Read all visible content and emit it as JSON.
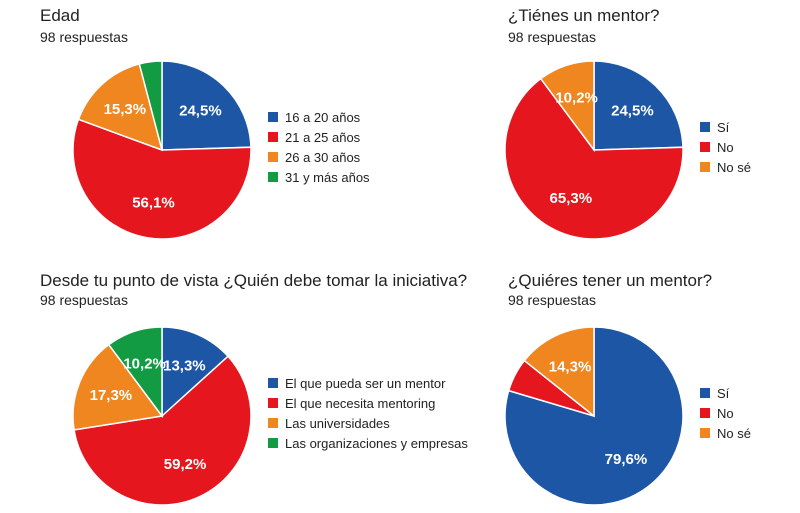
{
  "colors": {
    "blue": "#1c56a4",
    "red": "#e5161e",
    "orange": "#f0861f",
    "green": "#139b44"
  },
  "chart_data": [
    {
      "type": "pie",
      "title": "Edad",
      "subtitle": "98 respuestas",
      "slices": [
        {
          "label": "16 a 20 años",
          "value": 24.5,
          "color": "#1c56a4",
          "data_label": "24,5%"
        },
        {
          "label": "21 a 25 años",
          "value": 56.1,
          "color": "#e5161e",
          "data_label": "56,1%"
        },
        {
          "label": "26 a 30 años",
          "value": 15.3,
          "color": "#f0861f",
          "data_label": "15,3%"
        },
        {
          "label": "31 y más años",
          "value": 4.1,
          "color": "#139b44",
          "data_label": ""
        }
      ],
      "legend_position": "right"
    },
    {
      "type": "pie",
      "title": "¿Tiénes un mentor?",
      "subtitle": "98 respuestas",
      "slices": [
        {
          "label": "Sí",
          "value": 24.5,
          "color": "#1c56a4",
          "data_label": "24,5%"
        },
        {
          "label": "No",
          "value": 65.3,
          "color": "#e5161e",
          "data_label": "65,3%"
        },
        {
          "label": "No sé",
          "value": 10.2,
          "color": "#f0861f",
          "data_label": "10,2%"
        }
      ],
      "legend_position": "right"
    },
    {
      "type": "pie",
      "title": "Desde tu punto de vista ¿Quién debe tomar la iniciativa?",
      "subtitle": "98 respuestas",
      "slices": [
        {
          "label": "El que pueda ser un mentor",
          "value": 13.3,
          "color": "#1c56a4",
          "data_label": "13,3%"
        },
        {
          "label": "El que necesita mentoring",
          "value": 59.2,
          "color": "#e5161e",
          "data_label": "59,2%"
        },
        {
          "label": "Las universidades",
          "value": 17.3,
          "color": "#f0861f",
          "data_label": "17,3%"
        },
        {
          "label": "Las organizaciones y empresas",
          "value": 10.2,
          "color": "#139b44",
          "data_label": "10,2%"
        }
      ],
      "legend_position": "right"
    },
    {
      "type": "pie",
      "title": "¿Quiéres tener un mentor?",
      "subtitle": "98 respuestas",
      "slices": [
        {
          "label": "Sí",
          "value": 79.6,
          "color": "#1c56a4",
          "data_label": "79,6%"
        },
        {
          "label": "No",
          "value": 6.1,
          "color": "#e5161e",
          "data_label": ""
        },
        {
          "label": "No sé",
          "value": 14.3,
          "color": "#f0861f",
          "data_label": "14,3%"
        }
      ],
      "legend_position": "right"
    }
  ]
}
